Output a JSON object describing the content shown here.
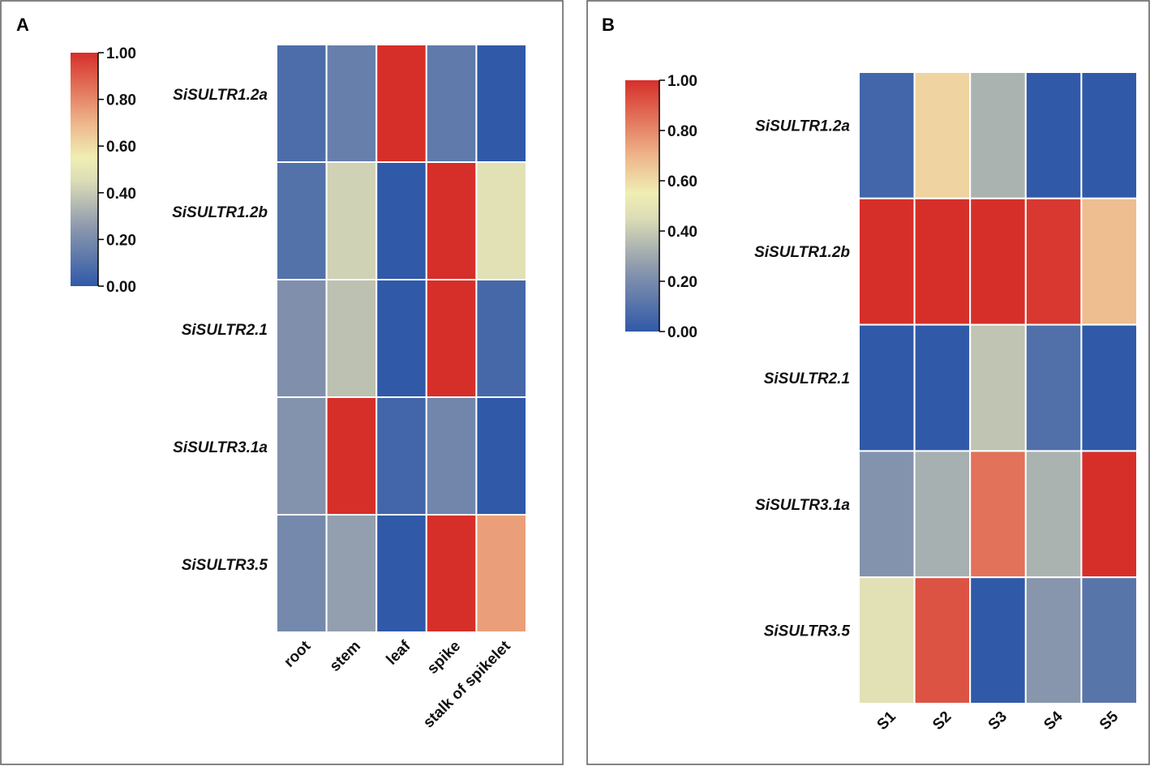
{
  "chart_data": [
    {
      "type": "heatmap",
      "panel_label": "A",
      "rows": [
        "SiSULTR1.2a",
        "SiSULTR1.2b",
        "SiSULTR2.1",
        "SiSULTR3.1a",
        "SiSULTR3.5"
      ],
      "columns": [
        "root",
        "stem",
        "leaf",
        "spike",
        "stalk of spikelet"
      ],
      "values": [
        [
          0.08,
          0.15,
          1.0,
          0.13,
          0.0
        ],
        [
          0.1,
          0.42,
          0.0,
          1.0,
          0.48
        ],
        [
          0.22,
          0.37,
          0.0,
          1.0,
          0.06
        ],
        [
          0.23,
          1.0,
          0.05,
          0.18,
          0.0
        ],
        [
          0.19,
          0.27,
          0.0,
          1.0,
          0.75
        ]
      ],
      "colorbar": {
        "min": 0.0,
        "max": 1.0,
        "ticks": [
          "0.00",
          "0.20",
          "0.40",
          "0.60",
          "0.80",
          "1.00"
        ]
      }
    },
    {
      "type": "heatmap",
      "panel_label": "B",
      "rows": [
        "SiSULTR1.2a",
        "SiSULTR1.2b",
        "SiSULTR2.1",
        "SiSULTR3.1a",
        "SiSULTR3.5"
      ],
      "columns": [
        "S1",
        "S2",
        "S3",
        "S4",
        "S5"
      ],
      "values": [
        [
          0.05,
          0.62,
          0.33,
          0.0,
          0.0
        ],
        [
          1.0,
          1.0,
          1.0,
          0.98,
          0.68
        ],
        [
          0.0,
          0.0,
          0.38,
          0.09,
          0.0
        ],
        [
          0.23,
          0.32,
          0.85,
          0.33,
          1.0
        ],
        [
          0.48,
          0.92,
          0.0,
          0.24,
          0.11
        ]
      ],
      "colorbar": {
        "min": 0.0,
        "max": 1.0,
        "ticks": [
          "0.00",
          "0.20",
          "0.40",
          "0.60",
          "0.80",
          "1.00"
        ]
      }
    }
  ],
  "colors": {
    "low": "#3059a8",
    "mid_low": "#c8c9b8",
    "mid": "#efeeb4",
    "mid_high": "#eeb58a",
    "high": "#d62f2a",
    "frame": "#5a5a5a"
  }
}
